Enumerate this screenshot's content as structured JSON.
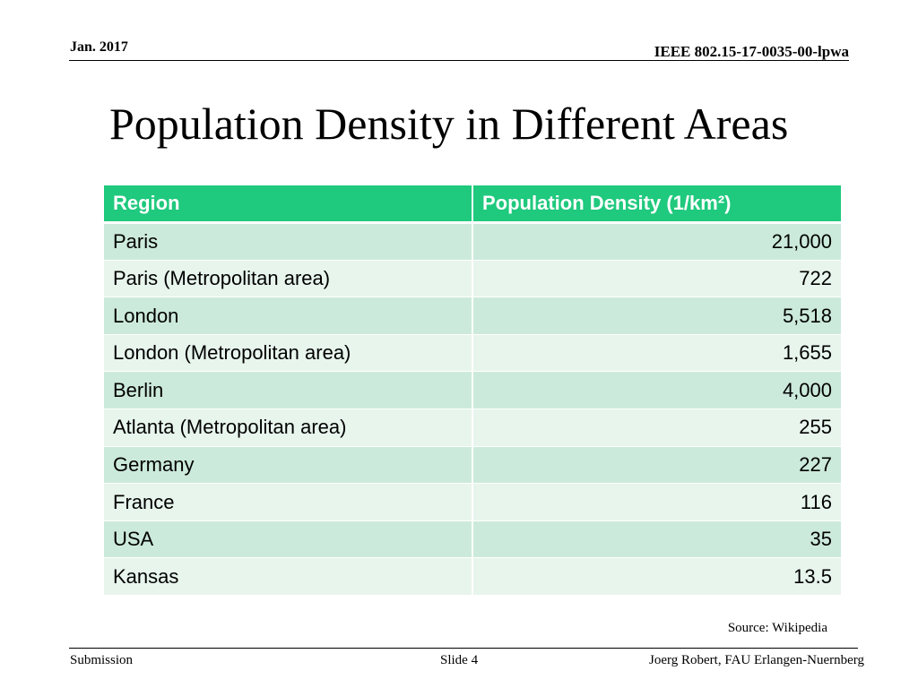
{
  "header": {
    "date": "Jan. 2017",
    "doc_id": "IEEE 802.15-17-0035-00-lpwa"
  },
  "title": "Population Density in Different Areas",
  "table": {
    "headers": [
      "Region",
      "Population Density (1/km²)"
    ],
    "rows": [
      [
        "Paris",
        "21,000"
      ],
      [
        "Paris (Metropolitan area)",
        "722"
      ],
      [
        "London",
        "5,518"
      ],
      [
        "London (Metropolitan area)",
        "1,655"
      ],
      [
        "Berlin",
        "4,000"
      ],
      [
        "Atlanta (Metropolitan area)",
        "255"
      ],
      [
        "Germany",
        "227"
      ],
      [
        "France",
        "116"
      ],
      [
        "USA",
        "35"
      ],
      [
        "Kansas",
        "13.5"
      ]
    ]
  },
  "source": "Source: Wikipedia",
  "footer": {
    "left": "Submission",
    "center": "Slide 4",
    "right": "Joerg Robert, FAU Erlangen-Nuernberg"
  },
  "colors": {
    "header_bg": "#1fc97d",
    "row_odd_bg": "#cceadb",
    "row_even_bg": "#e7f5ed"
  }
}
